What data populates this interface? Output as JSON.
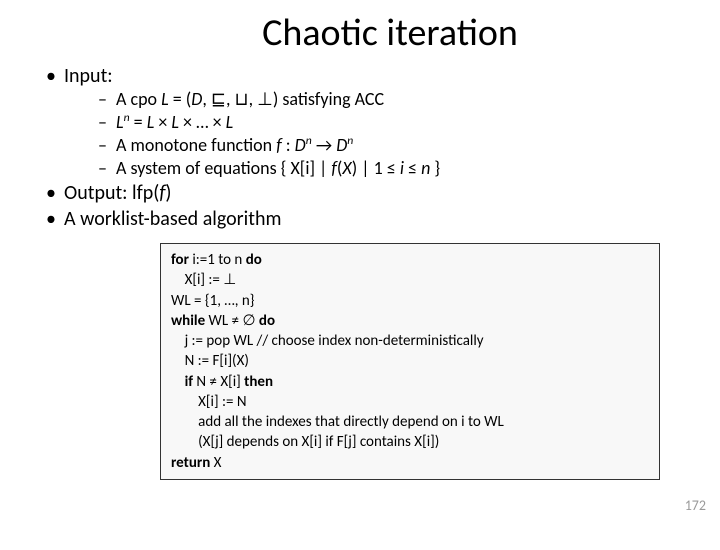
{
  "title": "Chaotic iteration",
  "bullets": {
    "input_label": "Input:",
    "input_items": [
      "A cpo L = (D, ⊑, ⊔, ⊥) satisfying ACC",
      "Lⁿ = L × L × … × L",
      "A monotone function f : Dⁿ → Dⁿ",
      "A system of equations { X[i] | f(X) | 1 ≤ i ≤ n }"
    ],
    "output_label": "Output: lfp(f)",
    "algo_label": "A worklist-based algorithm"
  },
  "code": {
    "l1_kw": "for",
    "l1_rest": " i:=1 to n ",
    "l1_do": "do",
    "l2": "    X[i] := ⊥",
    "l3": "WL = {1, …, n}",
    "l4_kw": "while",
    "l4_rest": " WL ≠ ∅ ",
    "l4_do": "do",
    "l5": "    j := pop WL // choose index non-deterministically",
    "l6": "    N := F[i](X)",
    "l7a": "    ",
    "l7_kw": "if",
    "l7b": " N ≠ X[i] ",
    "l7_then": "then",
    "l8": "        X[i] := N",
    "l9": "        add all the indexes that directly depend on i to WL",
    "l10": "        (X[j] depends on X[i] if F[j] contains X[i])",
    "l11_kw": "return",
    "l11_rest": " X"
  },
  "page_number": "172",
  "colors": {
    "background": "#ffffff",
    "text": "#000000",
    "codebox_bg": "#f8f8f8",
    "codebox_border": "#333333",
    "pagenum": "#9a9a9a"
  },
  "font_sizes": {
    "title": 38,
    "bullet_outer": 20,
    "bullet_inner": 18,
    "code": 15,
    "pagenum": 14
  }
}
